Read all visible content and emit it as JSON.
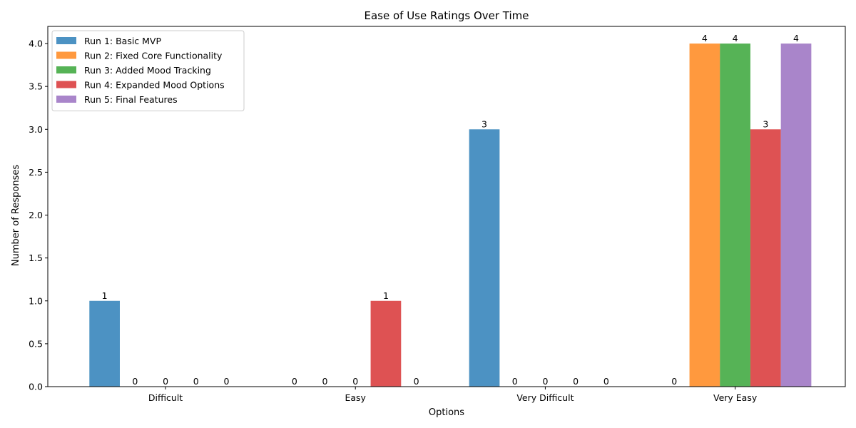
{
  "chart_data": {
    "type": "bar",
    "title": "Ease of Use Ratings Over Time",
    "xlabel": "Options",
    "ylabel": "Number of Responses",
    "categories": [
      "Difficult",
      "Easy",
      "Very Difficult",
      "Very Easy"
    ],
    "series": [
      {
        "name": "Run 1: Basic MVP",
        "color": "#1f77b4",
        "values": [
          1,
          0,
          3,
          0
        ]
      },
      {
        "name": "Run 2: Fixed Core Functionality",
        "color": "#ff7f0e",
        "values": [
          0,
          0,
          0,
          4
        ]
      },
      {
        "name": "Run 3: Added Mood Tracking",
        "color": "#2ca02c",
        "values": [
          0,
          0,
          0,
          4
        ]
      },
      {
        "name": "Run 4: Expanded Mood Options",
        "color": "#d62728",
        "values": [
          0,
          1,
          0,
          3
        ]
      },
      {
        "name": "Run 5: Final Features",
        "color": "#9467bd",
        "values": [
          0,
          0,
          0,
          4
        ]
      }
    ],
    "ylim": [
      0,
      4.2
    ],
    "yticks": [
      0.0,
      0.5,
      1.0,
      1.5,
      2.0,
      2.5,
      3.0,
      3.5,
      4.0
    ],
    "bar_opacity": 0.8,
    "grid": false,
    "legend_position": "upper left",
    "data_labels": true
  }
}
